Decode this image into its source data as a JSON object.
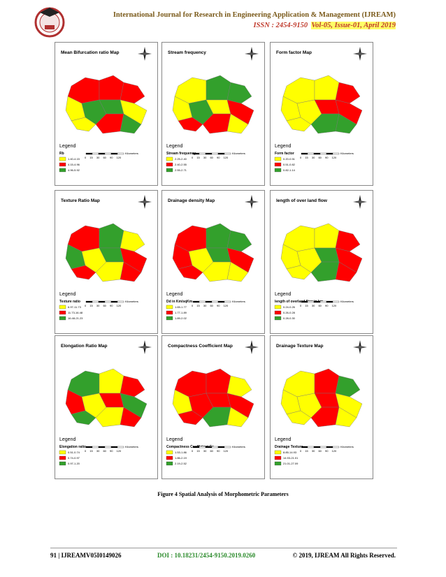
{
  "header": {
    "journal": "International Journal for Research in Engineering Application & Management (IJREAM)",
    "issn": "ISSN : 2454-9150",
    "volume": "Vol-05, Issue-01, April 2019"
  },
  "maps": [
    {
      "title": "Mean Bifurcation ratio Map",
      "legend_heading": "Legend",
      "legend_title": "Rb",
      "legend_items": [
        "1.40-4.15",
        "4.15-4.96",
        "4.96-5.92"
      ],
      "scale_labels": "0 15 30 60 90 120",
      "scale_unit": "Kilometers"
    },
    {
      "title": "Stream frequency",
      "legend_heading": "Legend",
      "legend_title": "Stream frequency",
      "legend_items": [
        "2.25-2.40",
        "2.40-2.55",
        "2.55-2.71"
      ],
      "scale_labels": "0 15 30 60 90 120",
      "scale_unit": "Kilometers"
    },
    {
      "title": "Form factor Map",
      "legend_heading": "Legend",
      "legend_title": "Form factor",
      "legend_items": [
        "0.20-0.51",
        "0.51-0.82",
        "0.82-1.14"
      ],
      "scale_labels": "0 15 30 60 90 120",
      "scale_unit": "Kilometers"
    },
    {
      "title": "Texture Ratio Map",
      "legend_heading": "Legend",
      "legend_title": "Texture ratio",
      "legend_items": [
        "6.97-11.73",
        "11.73-16.48",
        "16.48-21.23"
      ],
      "scale_labels": "0 15 30 60 90 120",
      "scale_unit": "Kilometers"
    },
    {
      "title": "Drainage density Map",
      "legend_heading": "Legend",
      "legend_title": "Dd in Km/sqKm",
      "legend_items": [
        "1.65-1.77",
        "1.77-1.89",
        "1.89-2.02"
      ],
      "scale_labels": "0 15 30 60 90 120",
      "scale_unit": "Kilometers"
    },
    {
      "title": "length of over land flow",
      "legend_heading": "Legend",
      "legend_title": "length of overland flow in km",
      "legend_items": [
        "0.24-0.26",
        "0.26-0.28",
        "0.28-0.30"
      ],
      "scale_labels": "0 15 30 60 90 120",
      "scale_unit": "Kilometers"
    },
    {
      "title": "Elongation Ratio Map",
      "legend_heading": "Legend",
      "legend_title": "Elongation ratio",
      "legend_items": [
        "0.51-0.74",
        "0.74-0.97",
        "0.97-1.20"
      ],
      "scale_labels": "0 15 30 60 90 120",
      "scale_unit": "Kilometers"
    },
    {
      "title": "Compactness Coefficient Map",
      "legend_heading": "Legend",
      "legend_title": "Compactness Coefficient Cc",
      "legend_items": [
        "1.53-1.86",
        "1.86-2.19",
        "2.19-2.52"
      ],
      "scale_labels": "0 15 30 60 90 120",
      "scale_unit": "Kilometers"
    },
    {
      "title": "Drainage Texture Map",
      "legend_heading": "Legend",
      "legend_title": "Drainage Texture",
      "legend_items": [
        "8.85-14.93",
        "14.93-21.01",
        "21.01-27.09"
      ],
      "scale_labels": "0 15 30 60 90 120",
      "scale_unit": "Kilometers"
    }
  ],
  "caption": "Figure 4 Spatial Analysis of Morphometric Parameters",
  "footer": {
    "page": "91 | IJREAMV05I0149026",
    "doi": "DOI : 10.18231/2454-9150.2019.0260",
    "rights": "© 2019, IJREAM All Rights Reserved."
  }
}
